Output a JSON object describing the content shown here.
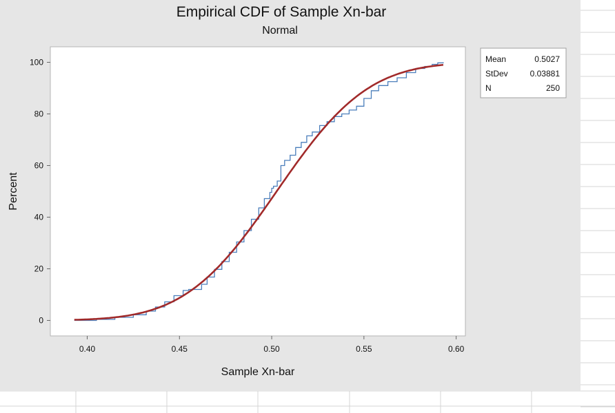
{
  "chart_data": {
    "type": "line",
    "title": "Empirical CDF of Sample Xn-bar",
    "subtitle": "Normal",
    "xlabel": "Sample Xn-bar",
    "ylabel": "Percent",
    "xlim": [
      0.38,
      0.605
    ],
    "ylim": [
      -6,
      106
    ],
    "x_ticks": [
      0.4,
      0.45,
      0.5,
      0.55,
      0.6
    ],
    "x_tick_labels": [
      "0.40",
      "0.45",
      "0.50",
      "0.55",
      "0.60"
    ],
    "y_ticks": [
      0,
      20,
      40,
      60,
      80,
      100
    ],
    "y_tick_labels": [
      "0",
      "20",
      "40",
      "60",
      "80",
      "100"
    ],
    "grid": false,
    "series": [
      {
        "style": "step",
        "color": "#4a7ebb",
        "x": [
          0.393,
          0.405,
          0.415,
          0.425,
          0.432,
          0.437,
          0.442,
          0.447,
          0.452,
          0.455,
          0.458,
          0.462,
          0.465,
          0.469,
          0.473,
          0.477,
          0.481,
          0.485,
          0.489,
          0.493,
          0.496,
          0.499,
          0.5,
          0.501,
          0.503,
          0.505,
          0.507,
          0.51,
          0.513,
          0.516,
          0.519,
          0.522,
          0.526,
          0.53,
          0.534,
          0.538,
          0.542,
          0.546,
          0.55,
          0.554,
          0.558,
          0.563,
          0.568,
          0.573,
          0.578,
          0.583,
          0.587,
          0.59,
          0.593
        ],
        "y": [
          0,
          0.4,
          1.2,
          2.2,
          3.6,
          5.2,
          7.2,
          9.6,
          11.6,
          12.0,
          12.0,
          14.0,
          16.8,
          19.8,
          22.8,
          26.4,
          30.4,
          34.8,
          39.2,
          43.6,
          47.2,
          49.6,
          51.2,
          52.0,
          54.0,
          60.0,
          62.0,
          64.0,
          67.0,
          69.0,
          71.5,
          73.0,
          75.5,
          77.0,
          79.0,
          80.0,
          81.5,
          83.0,
          86.0,
          89.0,
          91.0,
          92.5,
          94.0,
          96.0,
          97.6,
          98.4,
          99.2,
          99.8,
          100
        ]
      },
      {
        "style": "fit",
        "color": "#a12a2a",
        "distribution": "normal",
        "mean": 0.5027,
        "stdev": 0.03881
      }
    ],
    "stats": [
      {
        "label": "Mean",
        "value": "0.5027"
      },
      {
        "label": "StDev",
        "value": "0.03881"
      },
      {
        "label": "N",
        "value": "250"
      }
    ]
  }
}
